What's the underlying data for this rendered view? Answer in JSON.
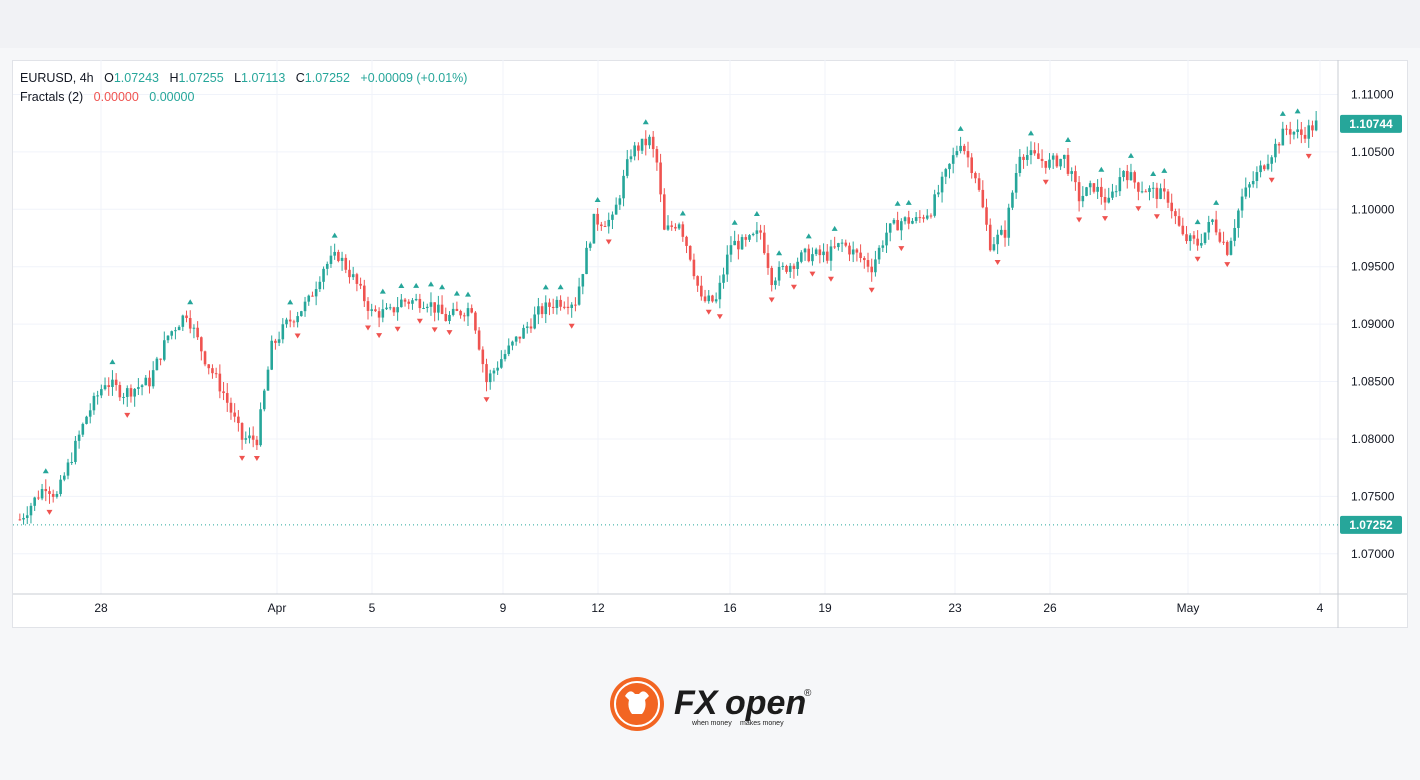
{
  "legend": {
    "symbol": "EURUSD, 4h",
    "o_label": "O",
    "o_val": "1.07243",
    "h_label": "H",
    "h_val": "1.07255",
    "l_label": "L",
    "l_val": "1.07113",
    "c_label": "C",
    "c_val": "1.07252",
    "change": "+0.00009 (+0.01%)",
    "indicator": "Fractals (2)",
    "ind_val1": "0.00000",
    "ind_val2": "0.00000"
  },
  "colors": {
    "up": "#26a69a",
    "down": "#ef5350",
    "grid": "#f0f3fa",
    "logo": "#f26522"
  },
  "logo": {
    "brand_fx": "FX",
    "brand_open": "open",
    "registered": "®",
    "tagline_left": "when money",
    "tagline_right": "makes money"
  },
  "chart_data": {
    "type": "candlestick",
    "symbol": "EURUSD",
    "timeframe": "4h",
    "indicator": "Fractals (2)",
    "ylim": [
      1.0665,
      1.113
    ],
    "y_ticks": [
      "1.11000",
      "1.10500",
      "1.10000",
      "1.09500",
      "1.09000",
      "1.08500",
      "1.08000",
      "1.07500",
      "1.07000"
    ],
    "x_ticks": [
      "28",
      "Apr",
      "5",
      "9",
      "12",
      "16",
      "19",
      "23",
      "26",
      "May",
      "4"
    ],
    "current_price_label": "1.07252",
    "current_price": 1.07252,
    "last_price_label": "1.10744",
    "last_price": 1.10744,
    "anchors": [
      [
        0,
        1.073
      ],
      [
        7,
        1.076
      ],
      [
        10,
        1.075
      ],
      [
        18,
        1.082
      ],
      [
        23,
        1.085
      ],
      [
        28,
        1.084
      ],
      [
        35,
        1.085
      ],
      [
        40,
        1.089
      ],
      [
        45,
        1.091
      ],
      [
        50,
        1.087
      ],
      [
        55,
        1.084
      ],
      [
        60,
        1.08
      ],
      [
        64,
        1.08
      ],
      [
        68,
        1.088
      ],
      [
        72,
        1.09
      ],
      [
        78,
        1.092
      ],
      [
        82,
        1.095
      ],
      [
        86,
        1.096
      ],
      [
        90,
        1.094
      ],
      [
        95,
        1.091
      ],
      [
        100,
        1.091
      ],
      [
        103,
        1.092
      ],
      [
        110,
        1.092
      ],
      [
        115,
        1.0905
      ],
      [
        122,
        1.0915
      ],
      [
        126,
        1.085
      ],
      [
        130,
        1.087
      ],
      [
        135,
        1.089
      ],
      [
        140,
        1.091
      ],
      [
        145,
        1.092
      ],
      [
        150,
        1.092
      ],
      [
        155,
        1.099
      ],
      [
        160,
        1.099
      ],
      [
        165,
        1.105
      ],
      [
        170,
        1.106
      ],
      [
        172,
        1.104
      ],
      [
        174,
        1.098
      ],
      [
        178,
        1.099
      ],
      [
        181,
        1.096
      ],
      [
        184,
        1.092
      ],
      [
        188,
        1.092
      ],
      [
        192,
        1.097
      ],
      [
        196,
        1.097
      ],
      [
        200,
        1.098
      ],
      [
        203,
        1.094
      ],
      [
        207,
        1.095
      ],
      [
        212,
        1.096
      ],
      [
        218,
        1.096
      ],
      [
        222,
        1.097
      ],
      [
        226,
        1.096
      ],
      [
        230,
        1.095
      ],
      [
        234,
        1.098
      ],
      [
        238,
        1.099
      ],
      [
        242,
        1.099
      ],
      [
        246,
        1.1
      ],
      [
        250,
        1.103
      ],
      [
        254,
        1.106
      ],
      [
        258,
        1.103
      ],
      [
        262,
        1.097
      ],
      [
        266,
        1.098
      ],
      [
        270,
        1.105
      ],
      [
        274,
        1.1045
      ],
      [
        278,
        1.104
      ],
      [
        282,
        1.1045
      ],
      [
        286,
        1.101
      ],
      [
        290,
        1.102
      ],
      [
        294,
        1.1005
      ],
      [
        298,
        1.1035
      ],
      [
        302,
        1.102
      ],
      [
        306,
        1.1015
      ],
      [
        310,
        1.101
      ],
      [
        314,
        1.0975
      ],
      [
        318,
        1.097
      ],
      [
        322,
        1.099
      ],
      [
        326,
        1.0965
      ],
      [
        330,
        1.101
      ],
      [
        334,
        1.103
      ],
      [
        338,
        1.105
      ],
      [
        342,
        1.107
      ],
      [
        346,
        1.1065
      ],
      [
        350,
        1.1074
      ]
    ],
    "anchor_x_units": "4h bar index",
    "fractal_markers": "up arrows above swing highs (green), down arrows below swing lows (red)"
  }
}
